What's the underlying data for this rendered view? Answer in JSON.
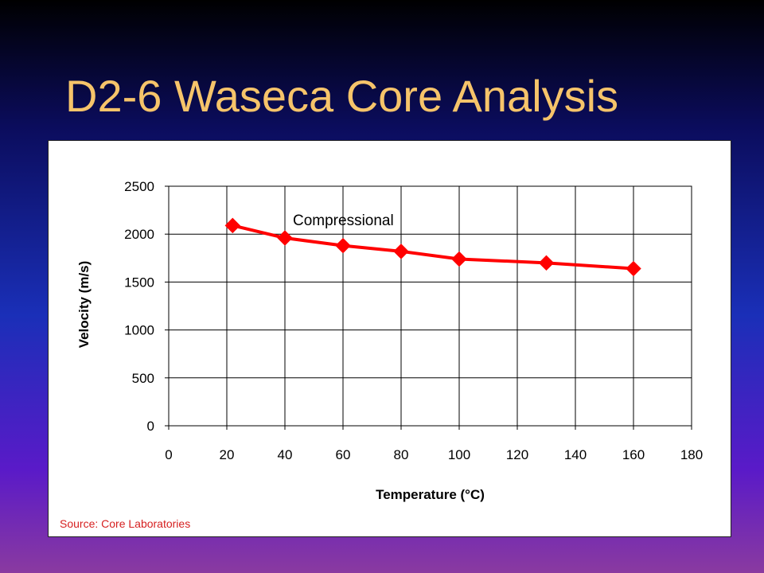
{
  "slide": {
    "title": "D2-6 Waseca Core Analysis",
    "source": "Source: Core Laboratories"
  },
  "chart_data": {
    "type": "line",
    "xlabel": "Temperature (°C)",
    "ylabel": "Velocity (m/s)",
    "xlim": [
      0,
      180
    ],
    "ylim": [
      0,
      2500
    ],
    "x_ticks": [
      0,
      20,
      40,
      60,
      80,
      100,
      120,
      140,
      160,
      180
    ],
    "y_ticks": [
      0,
      500,
      1000,
      1500,
      2000,
      2500
    ],
    "grid": true,
    "series": [
      {
        "name": "Compressional",
        "color": "#ff0000",
        "marker": "diamond",
        "x": [
          22,
          40,
          60,
          80,
          100,
          130,
          160
        ],
        "y": [
          2090,
          1960,
          1880,
          1820,
          1740,
          1700,
          1640
        ]
      }
    ]
  }
}
